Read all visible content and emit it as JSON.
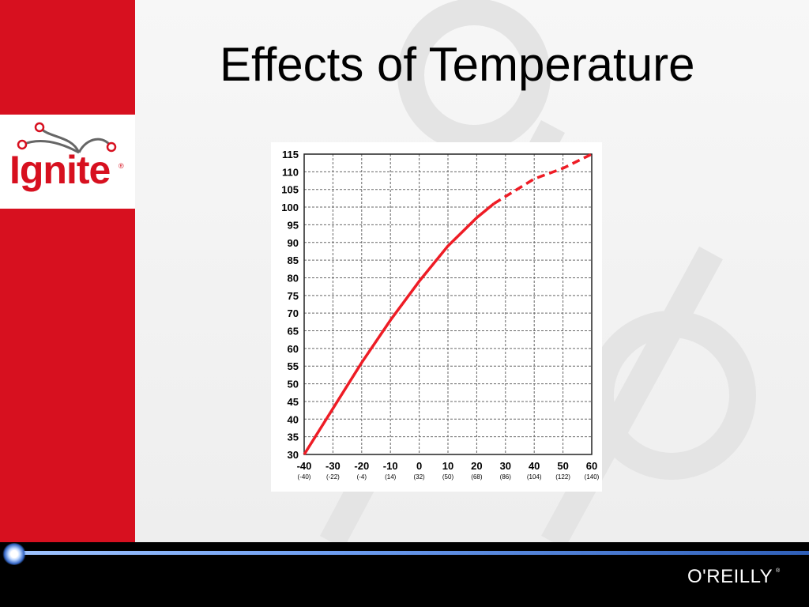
{
  "slide": {
    "title": "Effects of Temperature"
  },
  "logo": {
    "text": "Ignite",
    "mark": "®",
    "icon": "network-nodes-icon"
  },
  "footer": {
    "brand": "O'REILLY",
    "mark": "®"
  },
  "colors": {
    "brand_red": "#d7101f",
    "line_red": "#ee1c25",
    "grid": "#555555",
    "footer": "#000000"
  },
  "chart_data": {
    "type": "line",
    "title": "",
    "xlabel": "",
    "ylabel": "",
    "xlim": [
      -40,
      60
    ],
    "ylim": [
      30,
      115
    ],
    "grid": true,
    "x_ticks": [
      {
        "main": "-40",
        "sub": "(-40)"
      },
      {
        "main": "-30",
        "sub": "(-22)"
      },
      {
        "main": "-20",
        "sub": "(-4)"
      },
      {
        "main": "-10",
        "sub": "(14)"
      },
      {
        "main": "0",
        "sub": "(32)"
      },
      {
        "main": "10",
        "sub": "(50)"
      },
      {
        "main": "20",
        "sub": "(68)"
      },
      {
        "main": "30",
        "sub": "(86)"
      },
      {
        "main": "40",
        "sub": "(104)"
      },
      {
        "main": "50",
        "sub": "(122)"
      },
      {
        "main": "60",
        "sub": "(140)"
      }
    ],
    "y_ticks": [
      "115",
      "110",
      "105",
      "100",
      "95",
      "90",
      "85",
      "80",
      "75",
      "70",
      "65",
      "60",
      "55",
      "50",
      "45",
      "40",
      "35",
      "30"
    ],
    "series": [
      {
        "style": "solid",
        "color": "#ee1c25",
        "x": [
          -40,
          -30,
          -20,
          -10,
          0,
          10,
          20,
          26
        ],
        "y": [
          30,
          43,
          56,
          68,
          79,
          89,
          97,
          101
        ]
      },
      {
        "style": "dashed",
        "color": "#ee1c25",
        "x": [
          26,
          30,
          40,
          50,
          60
        ],
        "y": [
          101,
          103,
          108,
          111,
          115
        ]
      }
    ]
  }
}
